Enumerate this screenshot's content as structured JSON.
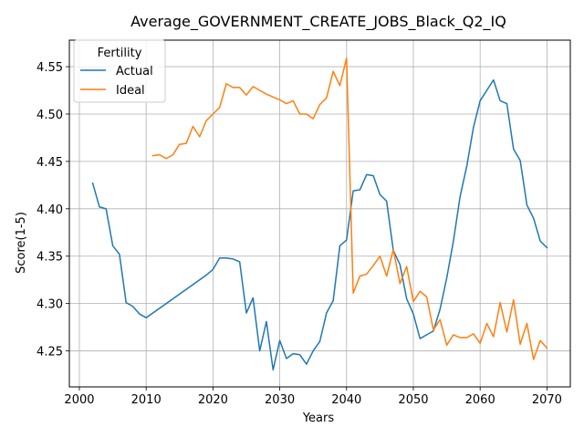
{
  "chart_data": {
    "type": "line",
    "title": "Average_GOVERNMENT_CREATE_JOBS_Black_Q2_IQ",
    "xlabel": "Years",
    "ylabel": "Score(1-5)",
    "xlim": [
      1998.5,
      2073.5
    ],
    "ylim": [
      4.212,
      4.578
    ],
    "xticks": [
      2000,
      2010,
      2020,
      2030,
      2040,
      2050,
      2060,
      2070
    ],
    "yticks": [
      4.25,
      4.3,
      4.35,
      4.4,
      4.45,
      4.5,
      4.55
    ],
    "ytick_labels": [
      "4.25",
      "4.30",
      "4.35",
      "4.40",
      "4.45",
      "4.50",
      "4.55"
    ],
    "grid": true,
    "legend": {
      "title": "Fertility",
      "placement": "top-left"
    },
    "series": [
      {
        "name": "Actual",
        "color": "#1f77b4",
        "points": [
          [
            2002,
            4.427
          ],
          [
            2003,
            4.402
          ],
          [
            2004,
            4.4
          ],
          [
            2005,
            4.361
          ],
          [
            2006,
            4.352
          ],
          [
            2007,
            4.301
          ],
          [
            2008,
            4.297
          ],
          [
            2009,
            4.289
          ],
          [
            2010,
            4.285
          ],
          [
            2019,
            4.33
          ],
          [
            2020,
            4.336
          ],
          [
            2021,
            4.348
          ],
          [
            2022,
            4.348
          ],
          [
            2023,
            4.347
          ],
          [
            2024,
            4.344
          ],
          [
            2025,
            4.29
          ],
          [
            2026,
            4.306
          ],
          [
            2027,
            4.25
          ],
          [
            2028,
            4.281
          ],
          [
            2029,
            4.23
          ],
          [
            2030,
            4.261
          ],
          [
            2031,
            4.242
          ],
          [
            2032,
            4.247
          ],
          [
            2033,
            4.246
          ],
          [
            2034,
            4.236
          ],
          [
            2035,
            4.25
          ],
          [
            2036,
            4.26
          ],
          [
            2037,
            4.29
          ],
          [
            2038,
            4.303
          ],
          [
            2039,
            4.361
          ],
          [
            2040,
            4.367
          ],
          [
            2041,
            4.419
          ],
          [
            2042,
            4.42
          ],
          [
            2043,
            4.436
          ],
          [
            2044,
            4.435
          ],
          [
            2045,
            4.415
          ],
          [
            2046,
            4.408
          ],
          [
            2047,
            4.356
          ],
          [
            2048,
            4.341
          ],
          [
            2049,
            4.305
          ],
          [
            2050,
            4.289
          ],
          [
            2051,
            4.263
          ],
          [
            2052,
            4.267
          ],
          [
            2053,
            4.271
          ],
          [
            2054,
            4.294
          ],
          [
            2055,
            4.327
          ],
          [
            2056,
            4.366
          ],
          [
            2057,
            4.413
          ],
          [
            2058,
            4.445
          ],
          [
            2059,
            4.486
          ],
          [
            2060,
            4.514
          ],
          [
            2061,
            4.525
          ],
          [
            2062,
            4.536
          ],
          [
            2063,
            4.514
          ],
          [
            2064,
            4.511
          ],
          [
            2065,
            4.463
          ],
          [
            2066,
            4.451
          ],
          [
            2067,
            4.404
          ],
          [
            2068,
            4.39
          ],
          [
            2069,
            4.366
          ],
          [
            2070,
            4.359
          ]
        ]
      },
      {
        "name": "Ideal",
        "color": "#ff7f0e",
        "points": [
          [
            2011,
            4.456
          ],
          [
            2012,
            4.457
          ],
          [
            2013,
            4.453
          ],
          [
            2014,
            4.457
          ],
          [
            2015,
            4.468
          ],
          [
            2016,
            4.469
          ],
          [
            2017,
            4.487
          ],
          [
            2018,
            4.476
          ],
          [
            2019,
            4.493
          ],
          [
            2020,
            4.5
          ],
          [
            2021,
            4.507
          ],
          [
            2022,
            4.532
          ],
          [
            2023,
            4.528
          ],
          [
            2024,
            4.528
          ],
          [
            2025,
            4.52
          ],
          [
            2026,
            4.529
          ],
          [
            2027,
            4.525
          ],
          [
            2028,
            4.521
          ],
          [
            2029,
            4.518
          ],
          [
            2030,
            4.515
          ],
          [
            2031,
            4.511
          ],
          [
            2032,
            4.514
          ],
          [
            2033,
            4.5
          ],
          [
            2034,
            4.5
          ],
          [
            2035,
            4.495
          ],
          [
            2036,
            4.51
          ],
          [
            2037,
            4.517
          ],
          [
            2038,
            4.545
          ],
          [
            2039,
            4.53
          ],
          [
            2040,
            4.559
          ],
          [
            2041,
            4.311
          ],
          [
            2042,
            4.329
          ],
          [
            2043,
            4.331
          ],
          [
            2044,
            4.34
          ],
          [
            2045,
            4.35
          ],
          [
            2046,
            4.329
          ],
          [
            2047,
            4.357
          ],
          [
            2048,
            4.321
          ],
          [
            2049,
            4.339
          ],
          [
            2050,
            4.302
          ],
          [
            2051,
            4.313
          ],
          [
            2052,
            4.307
          ],
          [
            2053,
            4.272
          ],
          [
            2054,
            4.283
          ],
          [
            2055,
            4.256
          ],
          [
            2056,
            4.267
          ],
          [
            2057,
            4.264
          ],
          [
            2058,
            4.264
          ],
          [
            2059,
            4.268
          ],
          [
            2060,
            4.258
          ],
          [
            2061,
            4.279
          ],
          [
            2062,
            4.265
          ],
          [
            2063,
            4.301
          ],
          [
            2064,
            4.27
          ],
          [
            2065,
            4.304
          ],
          [
            2066,
            4.257
          ],
          [
            2067,
            4.279
          ],
          [
            2068,
            4.241
          ],
          [
            2069,
            4.261
          ],
          [
            2070,
            4.253
          ]
        ]
      }
    ]
  }
}
